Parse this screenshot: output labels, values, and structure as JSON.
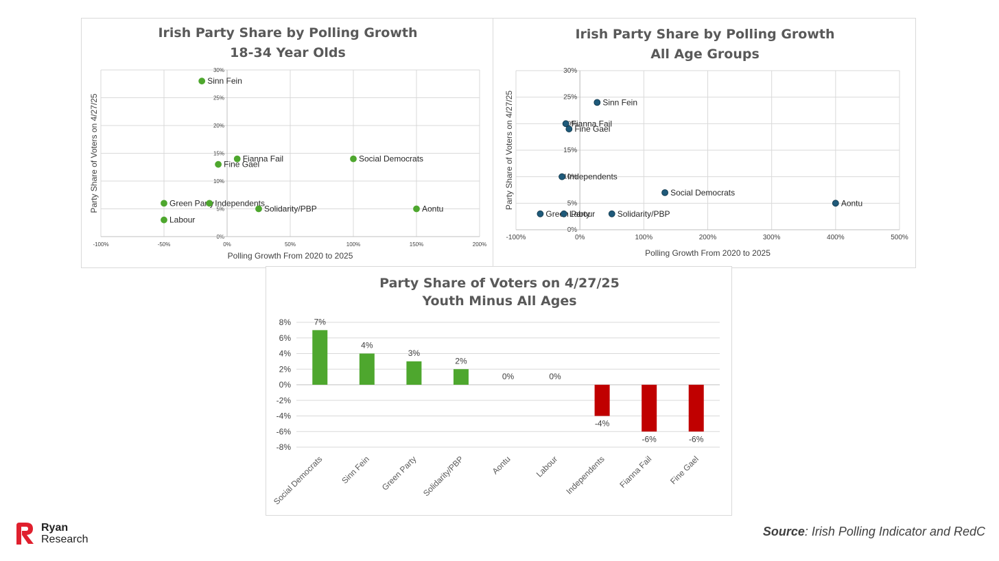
{
  "chart_data": [
    {
      "type": "scatter",
      "title": "Irish Party Share by Polling Growth",
      "subtitle": "18-34 Year Olds",
      "xlabel": "Polling Growth From 2020 to 2025",
      "ylabel": "Party Share of Voters on 4/27/25",
      "xlim": [
        -100,
        200
      ],
      "ylim": [
        0,
        30
      ],
      "x_ticks": [
        "-100%",
        "-50%",
        "0%",
        "50%",
        "100%",
        "150%",
        "200%"
      ],
      "y_ticks": [
        "0%",
        "5%",
        "10%",
        "15%",
        "20%",
        "25%",
        "30%"
      ],
      "grid": true,
      "marker_color": "#4ea72e",
      "points": [
        {
          "label": "Sinn Fein",
          "x": -20,
          "y": 28
        },
        {
          "label": "Fianna Fail",
          "x": 8,
          "y": 14
        },
        {
          "label": "Fine Gael",
          "x": -7,
          "y": 13
        },
        {
          "label": "Social Democrats",
          "x": 100,
          "y": 14
        },
        {
          "label": "Green Party",
          "x": -50,
          "y": 6
        },
        {
          "label": "Independents",
          "x": -14,
          "y": 6
        },
        {
          "label": "Solidarity/PBP",
          "x": 25,
          "y": 5
        },
        {
          "label": "Aontu",
          "x": 150,
          "y": 5
        },
        {
          "label": "Labour",
          "x": -50,
          "y": 3
        }
      ]
    },
    {
      "type": "scatter",
      "title": "Irish Party Share by Polling Growth",
      "subtitle": "All Age Groups",
      "xlabel": "Polling Growth From 2020 to 2025",
      "ylabel": "Party Share of Voters on 4/27/25",
      "xlim": [
        -100,
        500
      ],
      "ylim": [
        0,
        30
      ],
      "x_ticks": [
        "-100%",
        "0%",
        "100%",
        "200%",
        "300%",
        "400%",
        "500%"
      ],
      "y_ticks": [
        "0%",
        "5%",
        "10%",
        "15%",
        "20%",
        "25%",
        "30%"
      ],
      "grid": true,
      "marker_color": "#1f5a7a",
      "points": [
        {
          "label": "Sinn Fein",
          "x": 27,
          "y": 24
        },
        {
          "label": "Fianna Fail",
          "x": -22,
          "y": 20
        },
        {
          "label": "Fine Gael",
          "x": -17,
          "y": 19
        },
        {
          "label": "Independents",
          "x": -28,
          "y": 10
        },
        {
          "label": "Social Democrats",
          "x": 133,
          "y": 7
        },
        {
          "label": "Aontu",
          "x": 400,
          "y": 5
        },
        {
          "label": "Green Party",
          "x": -62,
          "y": 3
        },
        {
          "label": "Labour",
          "x": -25,
          "y": 3
        },
        {
          "label": "Solidarity/PBP",
          "x": 50,
          "y": 3
        }
      ]
    },
    {
      "type": "bar",
      "title": "Party Share of Voters on 4/27/25",
      "subtitle": "Youth Minus All Ages",
      "categories": [
        "Social Democrats",
        "Sinn Fein",
        "Green Party",
        "Solidarity/PBP",
        "Aontu",
        "Labour",
        "Independents",
        "Fianna Fail",
        "Fine Gael"
      ],
      "values": [
        7,
        4,
        3,
        2,
        0,
        0,
        -4,
        -6,
        -6
      ],
      "data_labels": [
        "7%",
        "4%",
        "3%",
        "2%",
        "0%",
        "0%",
        "-4%",
        "-6%",
        "-6%"
      ],
      "ylim": [
        -8,
        8
      ],
      "y_ticks": [
        "-8%",
        "-6%",
        "-4%",
        "-2%",
        "0%",
        "2%",
        "4%",
        "6%",
        "8%"
      ],
      "grid": true,
      "positive_color": "#4ea72e",
      "negative_color": "#c00000"
    }
  ],
  "branding": {
    "logo_line1": "Ryan",
    "logo_line2": "Research",
    "logo_color": "#e0202e"
  },
  "source": {
    "label": "Source",
    "text": ": Irish Polling Indicator and RedC"
  }
}
